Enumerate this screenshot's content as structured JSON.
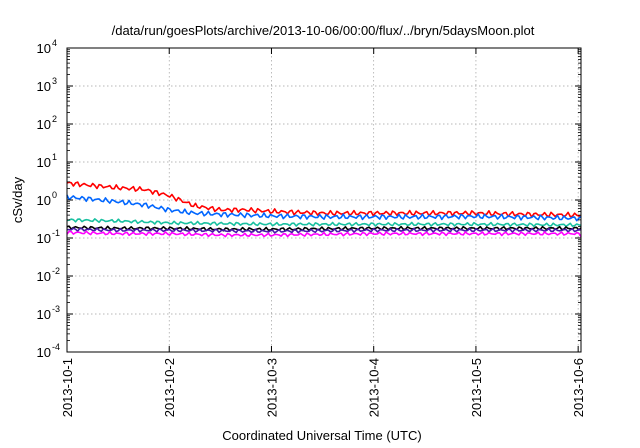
{
  "chart_data": {
    "type": "line",
    "title": "/data/run/goesPlots/archive/2013-10-06/00:00/flux/../bryn/5daysMoon.plot",
    "xlabel": "Coordinated Universal Time (UTC)",
    "ylabel": "cSv/day",
    "y_scale": "log",
    "ylim": [
      0.0001,
      10000
    ],
    "xlim": [
      "2013-10-01",
      "2013-10-06 00:40"
    ],
    "x_ticks": [
      "2013-10-1",
      "2013-10-2",
      "2013-10-3",
      "2013-10-4",
      "2013-10-5",
      "2013-10-6"
    ],
    "y_ticks": [
      {
        "base": "10",
        "exp": "-4"
      },
      {
        "base": "10",
        "exp": "-3"
      },
      {
        "base": "10",
        "exp": "-2"
      },
      {
        "base": "10",
        "exp": "-1"
      },
      {
        "base": "10",
        "exp": "0"
      },
      {
        "base": "10",
        "exp": "1"
      },
      {
        "base": "10",
        "exp": "2"
      },
      {
        "base": "10",
        "exp": "3"
      },
      {
        "base": "10",
        "exp": "4"
      }
    ],
    "grid": true,
    "legend": "none",
    "series": [
      {
        "color": "#ff0000",
        "x": [
          "2013-10-01 00:00",
          "2013-10-01 06:00",
          "2013-10-01 12:00",
          "2013-10-01 18:00",
          "2013-10-02 00:00",
          "2013-10-02 06:00",
          "2013-10-02 12:00",
          "2013-10-02 18:00",
          "2013-10-03 00:00",
          "2013-10-03 12:00",
          "2013-10-04 00:00",
          "2013-10-04 12:00",
          "2013-10-05 00:00",
          "2013-10-05 12:00",
          "2013-10-06 00:00",
          "2013-10-06 00:40"
        ],
        "values": [
          2.8,
          2.4,
          2.1,
          1.9,
          1.3,
          0.7,
          0.55,
          0.55,
          0.5,
          0.45,
          0.45,
          0.45,
          0.45,
          0.42,
          0.4,
          0.38
        ]
      },
      {
        "color": "#0066ff",
        "x": [
          "2013-10-01 00:00",
          "2013-10-01 06:00",
          "2013-10-01 12:00",
          "2013-10-01 18:00",
          "2013-10-02 00:00",
          "2013-10-02 06:00",
          "2013-10-02 12:00",
          "2013-10-02 18:00",
          "2013-10-03 00:00",
          "2013-10-03 12:00",
          "2013-10-04 00:00",
          "2013-10-04 12:00",
          "2013-10-05 00:00",
          "2013-10-05 12:00",
          "2013-10-06 00:00",
          "2013-10-06 00:40"
        ],
        "values": [
          1.2,
          1.05,
          0.9,
          0.75,
          0.55,
          0.45,
          0.42,
          0.4,
          0.38,
          0.36,
          0.36,
          0.36,
          0.37,
          0.35,
          0.33,
          0.32
        ]
      },
      {
        "color": "#19c0a0",
        "x": [
          "2013-10-01 00:00",
          "2013-10-01 12:00",
          "2013-10-02 00:00",
          "2013-10-02 12:00",
          "2013-10-03 00:00",
          "2013-10-04 00:00",
          "2013-10-05 00:00",
          "2013-10-06 00:00",
          "2013-10-06 00:40"
        ],
        "values": [
          0.3,
          0.28,
          0.25,
          0.24,
          0.23,
          0.23,
          0.23,
          0.22,
          0.22
        ]
      },
      {
        "color": "#000000",
        "x": [
          "2013-10-01 00:00",
          "2013-10-01 12:00",
          "2013-10-02 00:00",
          "2013-10-02 12:00",
          "2013-10-03 00:00",
          "2013-10-04 00:00",
          "2013-10-05 00:00",
          "2013-10-06 00:00",
          "2013-10-06 00:40"
        ],
        "values": [
          0.19,
          0.18,
          0.18,
          0.17,
          0.17,
          0.18,
          0.18,
          0.18,
          0.18
        ]
      },
      {
        "color": "#4a1aa8",
        "x": [
          "2013-10-01 00:00",
          "2013-10-01 12:00",
          "2013-10-02 00:00",
          "2013-10-02 12:00",
          "2013-10-03 00:00",
          "2013-10-04 00:00",
          "2013-10-05 00:00",
          "2013-10-06 00:00",
          "2013-10-06 00:40"
        ],
        "values": [
          0.17,
          0.16,
          0.16,
          0.155,
          0.15,
          0.16,
          0.16,
          0.16,
          0.16
        ]
      },
      {
        "color": "#ff00ff",
        "x": [
          "2013-10-01 00:00",
          "2013-10-01 12:00",
          "2013-10-02 00:00",
          "2013-10-02 12:00",
          "2013-10-03 00:00",
          "2013-10-04 00:00",
          "2013-10-05 00:00",
          "2013-10-06 00:00",
          "2013-10-06 00:40"
        ],
        "values": [
          0.14,
          0.13,
          0.13,
          0.12,
          0.12,
          0.13,
          0.13,
          0.13,
          0.12
        ]
      }
    ]
  }
}
